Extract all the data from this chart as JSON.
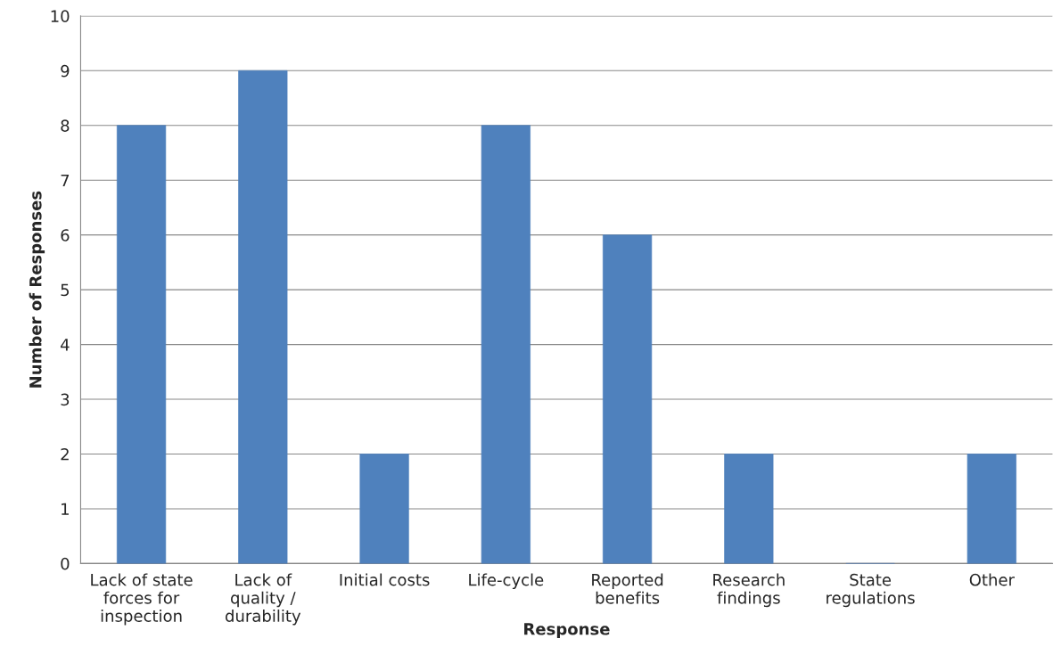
{
  "chart_data": {
    "type": "bar",
    "xlabel": "Response",
    "ylabel": "Number of Responses",
    "categories": [
      "Lack of state forces for inspection",
      "Lack of quality / durability",
      "Initial costs",
      "Life-cycle",
      "Reported benefits",
      "Research findings",
      "State regulations",
      "Other"
    ],
    "values": [
      8,
      9,
      2,
      8,
      6,
      2,
      0,
      2
    ],
    "color": "#4f81bd",
    "ylim": [
      0,
      10
    ],
    "yticks": [
      0,
      1,
      2,
      3,
      4,
      5,
      6,
      7,
      8,
      9,
      10
    ],
    "grid": "y",
    "legend": false
  }
}
